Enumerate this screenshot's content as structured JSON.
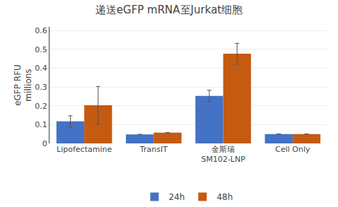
{
  "chart_data": {
    "type": "bar",
    "title": "递送eGFP mRNA至Jurkat细胞",
    "ylabel": "eGFP RFU\nmillions",
    "categories": [
      "Lipofectamine",
      "TransIT",
      "金斯瑞\nSM102-LNP",
      "Cell Only"
    ],
    "series": [
      {
        "name": "24h",
        "color": "#4472C4",
        "values": [
          0.117,
          0.048,
          0.253,
          0.05
        ],
        "errors": [
          0.03,
          0.0,
          0.03,
          0.0
        ]
      },
      {
        "name": "48h",
        "color": "#C55A11",
        "values": [
          0.203,
          0.057,
          0.477,
          0.05
        ],
        "errors": [
          0.1,
          0.0,
          0.055,
          0.0
        ]
      }
    ],
    "ylim": [
      0,
      0.62
    ],
    "yticks": [
      0,
      0.1,
      0.2,
      0.3,
      0.4,
      0.5,
      0.6
    ],
    "grid": true,
    "legend": "bottom"
  }
}
